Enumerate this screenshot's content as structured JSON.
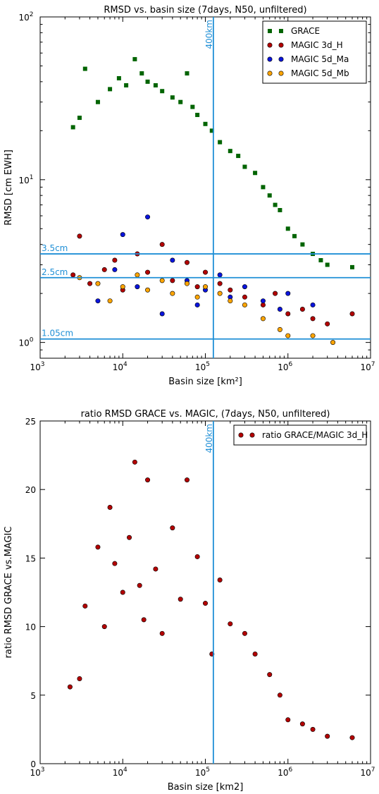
{
  "chart_data": [
    {
      "type": "scatter",
      "title": "RMSD vs. basin size (7days, N50, unfiltered)",
      "xlabel": "Basin size [km²]",
      "ylabel": "RMSD [cm EWH]",
      "xscale": "log",
      "yscale": "log",
      "xlim": [
        1000,
        10000000
      ],
      "ylim": [
        0.8,
        100
      ],
      "xticks": [
        {
          "value": 1000,
          "base": "10",
          "exp": "3"
        },
        {
          "value": 10000,
          "base": "10",
          "exp": "4"
        },
        {
          "value": 100000,
          "base": "10",
          "exp": "5"
        },
        {
          "value": 1000000,
          "base": "10",
          "exp": "6"
        },
        {
          "value": 10000000,
          "base": "10",
          "exp": "7"
        }
      ],
      "yticks": [
        {
          "value": 1,
          "base": "10",
          "exp": "0"
        },
        {
          "value": 10,
          "base": "10",
          "exp": "1"
        },
        {
          "value": 100,
          "base": "10",
          "exp": "2"
        }
      ],
      "grid": false,
      "legend_position": "top-right",
      "reference_lines": [
        {
          "orientation": "vertical",
          "value": 125000,
          "label": "400km",
          "color": "#1f8fd6"
        },
        {
          "orientation": "horizontal",
          "value": 3.5,
          "label": "3.5cm",
          "color": "#1f8fd6"
        },
        {
          "orientation": "horizontal",
          "value": 2.5,
          "label": "2.5cm",
          "color": "#1f8fd6"
        },
        {
          "orientation": "horizontal",
          "value": 1.05,
          "label": "1.05cm",
          "color": "#1f8fd6"
        }
      ],
      "series": [
        {
          "name": "GRACE",
          "marker": "square",
          "color": "#006400",
          "x": [
            2500,
            3000,
            3500,
            5000,
            7000,
            9000,
            11000,
            14000,
            17000,
            20000,
            25000,
            30000,
            40000,
            50000,
            60000,
            70000,
            80000,
            100000,
            120000,
            150000,
            200000,
            250000,
            300000,
            400000,
            500000,
            600000,
            700000,
            800000,
            1000000,
            1200000,
            1500000,
            2000000,
            2500000,
            3000000,
            6000000
          ],
          "y": [
            21,
            24,
            48,
            30,
            36,
            42,
            38,
            55,
            45,
            40,
            38,
            35,
            32,
            30,
            45,
            28,
            25,
            22,
            20,
            17,
            15,
            14,
            12,
            11,
            9,
            8,
            7,
            6.5,
            5,
            4.5,
            4,
            3.5,
            3.2,
            3.0,
            2.9
          ]
        },
        {
          "name": "MAGIC 3d_H",
          "marker": "circle",
          "color": "#b30000",
          "x": [
            2500,
            3000,
            4000,
            6000,
            8000,
            10000,
            15000,
            20000,
            30000,
            40000,
            60000,
            80000,
            100000,
            150000,
            200000,
            300000,
            500000,
            700000,
            1000000,
            1500000,
            2000000,
            3000000,
            6000000
          ],
          "y": [
            2.6,
            4.5,
            2.3,
            2.8,
            3.2,
            2.1,
            3.5,
            2.7,
            4.0,
            2.4,
            3.1,
            2.2,
            2.7,
            2.3,
            2.1,
            1.9,
            1.7,
            2.0,
            1.5,
            1.6,
            1.4,
            1.3,
            1.5
          ]
        },
        {
          "name": "MAGIC 5d_Ma",
          "marker": "circle",
          "color": "#0a14dc",
          "x": [
            5000,
            8000,
            10000,
            15000,
            20000,
            30000,
            40000,
            60000,
            80000,
            100000,
            150000,
            200000,
            300000,
            500000,
            800000,
            1000000,
            2000000
          ],
          "y": [
            1.8,
            2.8,
            4.6,
            2.2,
            5.9,
            1.5,
            3.2,
            2.4,
            1.7,
            2.1,
            2.6,
            1.9,
            2.2,
            1.8,
            1.6,
            2.0,
            1.7
          ]
        },
        {
          "name": "MAGIC 5d_Mb",
          "marker": "circle",
          "color": "#ffa500",
          "x": [
            3000,
            5000,
            7000,
            10000,
            15000,
            20000,
            30000,
            40000,
            60000,
            80000,
            100000,
            150000,
            200000,
            300000,
            500000,
            800000,
            1000000,
            2000000,
            3500000
          ],
          "y": [
            2.5,
            2.3,
            1.8,
            2.2,
            2.6,
            2.1,
            2.4,
            2.0,
            2.3,
            1.9,
            2.2,
            2.0,
            1.8,
            1.7,
            1.4,
            1.2,
            1.1,
            1.1,
            1.0
          ]
        }
      ]
    },
    {
      "type": "scatter",
      "title": "ratio RMSD GRACE vs. MAGIC, (7days, N50, unfiltered)",
      "xlabel": "Basin size [km2]",
      "ylabel": "ratio RMSD GRACE vs.MAGIC",
      "xscale": "log",
      "yscale": "linear",
      "xlim": [
        1000,
        10000000
      ],
      "ylim": [
        0,
        25
      ],
      "xticks": [
        {
          "value": 1000,
          "base": "10",
          "exp": "3"
        },
        {
          "value": 10000,
          "base": "10",
          "exp": "4"
        },
        {
          "value": 100000,
          "base": "10",
          "exp": "5"
        },
        {
          "value": 1000000,
          "base": "10",
          "exp": "6"
        },
        {
          "value": 10000000,
          "base": "10",
          "exp": "7"
        }
      ],
      "yticks": [
        {
          "value": 0,
          "label": "0"
        },
        {
          "value": 5,
          "label": "5"
        },
        {
          "value": 10,
          "label": "10"
        },
        {
          "value": 15,
          "label": "15"
        },
        {
          "value": 20,
          "label": "20"
        },
        {
          "value": 25,
          "label": "25"
        }
      ],
      "grid": false,
      "legend_position": "top-right",
      "reference_lines": [
        {
          "orientation": "vertical",
          "value": 125000,
          "label": "400km",
          "color": "#1f8fd6"
        }
      ],
      "series": [
        {
          "name": "ratio GRACE/MAGIC 3d_H",
          "marker": "circle",
          "color": "#b30000",
          "x": [
            2300,
            3000,
            3500,
            5000,
            6000,
            7000,
            8000,
            10000,
            12000,
            14000,
            16000,
            18000,
            20000,
            25000,
            30000,
            40000,
            50000,
            60000,
            80000,
            100000,
            120000,
            150000,
            200000,
            300000,
            400000,
            600000,
            800000,
            1000000,
            1500000,
            2000000,
            3000000,
            6000000
          ],
          "y": [
            5.6,
            6.2,
            11.5,
            15.8,
            10.0,
            18.7,
            14.6,
            12.5,
            16.5,
            22.0,
            13.0,
            10.5,
            20.7,
            14.2,
            9.5,
            17.2,
            12.0,
            20.7,
            15.1,
            11.7,
            8.0,
            13.4,
            10.2,
            9.5,
            8.0,
            6.5,
            5.0,
            3.2,
            2.9,
            2.5,
            2.0,
            1.9
          ]
        }
      ]
    }
  ]
}
